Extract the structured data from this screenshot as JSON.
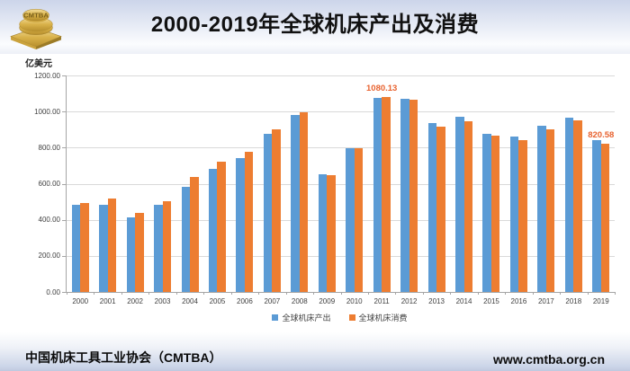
{
  "header": {
    "title": "2000-2019年全球机床产出及消费",
    "logo_text": "CMTBA"
  },
  "footer": {
    "org": "中国机床工具工业协会（CMTBA）",
    "url": "www.cmtba.org.cn"
  },
  "chart_data": {
    "type": "bar",
    "title": "2000-2019年全球机床产出及消费",
    "ylabel": "亿美元",
    "xlabel": "",
    "categories": [
      "2000",
      "2001",
      "2002",
      "2003",
      "2004",
      "2005",
      "2006",
      "2007",
      "2008",
      "2009",
      "2010",
      "2011",
      "2012",
      "2013",
      "2014",
      "2015",
      "2016",
      "2017",
      "2018",
      "2019"
    ],
    "series": [
      {
        "name": "全球机床产出",
        "color": "#5B9BD5",
        "values": [
          485,
          485,
          415,
          485,
          585,
          680,
          740,
          875,
          980,
          650,
          795,
          1075,
          1070,
          935,
          970,
          875,
          860,
          920,
          965,
          840
        ]
      },
      {
        "name": "全球机床消费",
        "color": "#ED7D31",
        "values": [
          495,
          520,
          440,
          505,
          635,
          720,
          775,
          900,
          995,
          645,
          795,
          1080.13,
          1067,
          915,
          945,
          865,
          840,
          900,
          950,
          820.58
        ]
      }
    ],
    "ylim": [
      0,
      1200
    ],
    "ytick_step": 200,
    "ytick_format_decimals": 2,
    "grid": true,
    "legend_position": "bottom",
    "annotations": [
      {
        "series": 1,
        "category": "2011",
        "text": "1080.13",
        "color": "#E8622F"
      },
      {
        "series": 1,
        "category": "2019",
        "text": "820.58",
        "color": "#E8622F"
      }
    ]
  },
  "colors": {
    "bar_output": "#5B9BD5",
    "bar_consumption": "#ED7D31",
    "annotation": "#E8622F",
    "gridline": "#D9D9D9",
    "axis": "#A6A6A6",
    "axis_text": "#404040"
  }
}
